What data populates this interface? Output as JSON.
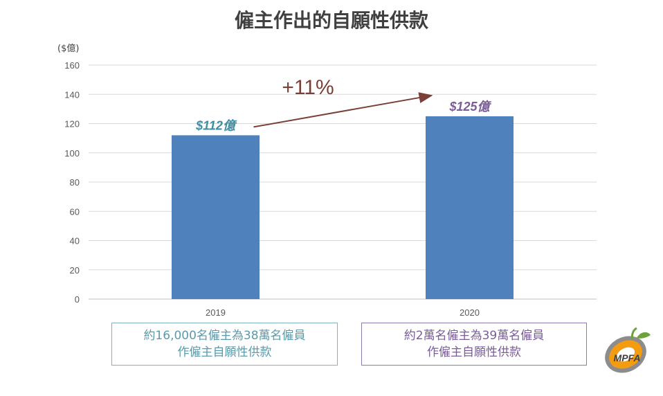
{
  "title": "僱主作出的自願性供款",
  "unit_label": "($億)",
  "chart_data": {
    "type": "bar",
    "title": "僱主作出的自願性供款",
    "ylabel": "($億)",
    "xlabel": "",
    "categories": [
      "2019",
      "2020"
    ],
    "values": [
      112,
      125
    ],
    "data_labels": [
      "$112億",
      "$125億"
    ],
    "data_label_colors": [
      "#3e8fa3",
      "#7a5d98"
    ],
    "bar_color": "#4f81bd",
    "ylim": [
      0,
      160
    ],
    "yticks": [
      0,
      20,
      40,
      60,
      80,
      100,
      120,
      140,
      160
    ],
    "grid": true,
    "annotation": {
      "text": "+11%",
      "color": "#7b3f3a"
    }
  },
  "notes": [
    {
      "line1": "約16,000名僱主為38萬名僱員",
      "line2": "作僱主自願性供款"
    },
    {
      "line1": "約2萬名僱主為39萬名僱員",
      "line2": "作僱主自願性供款"
    }
  ],
  "logo": {
    "name": "mpfa-logo",
    "text": "MPFA",
    "colors": [
      "#f39c12",
      "#7f7f7f",
      "#6fa23b"
    ]
  }
}
